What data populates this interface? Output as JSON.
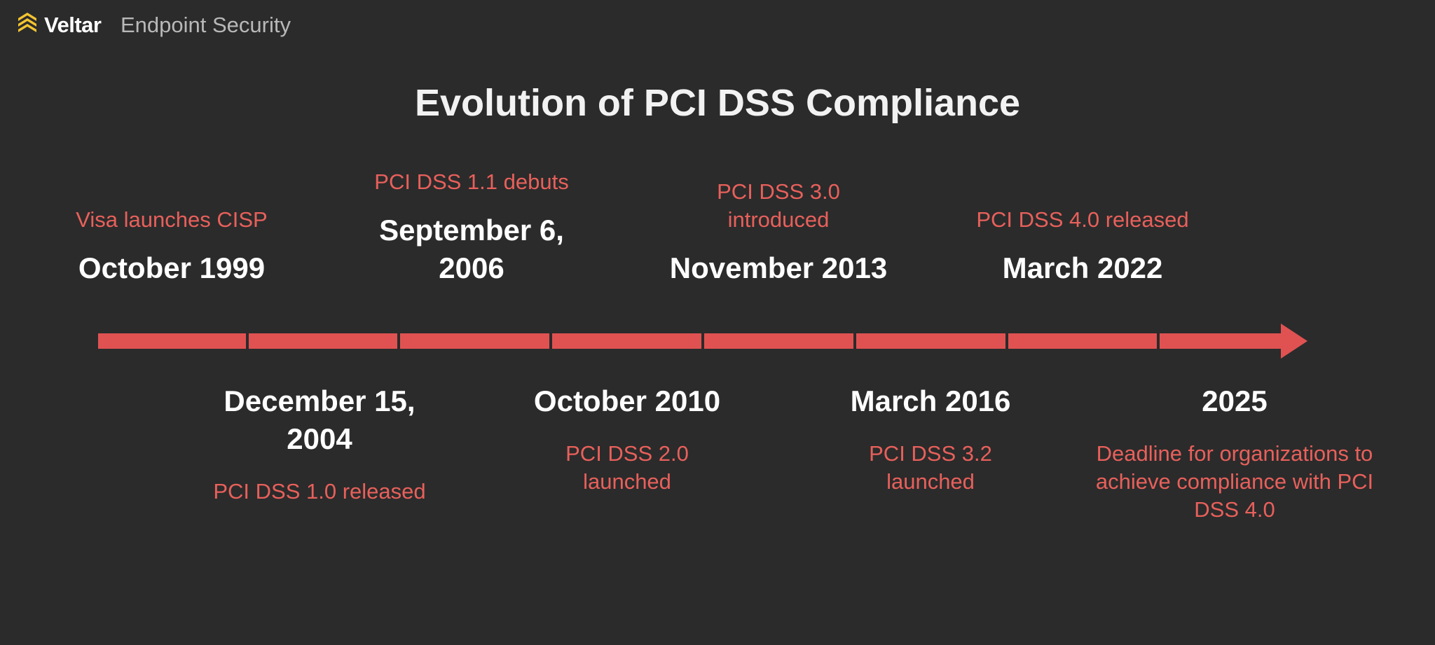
{
  "header": {
    "brand": "Veltar",
    "product": "Endpoint Security"
  },
  "title": "Evolution of PCI DSS Compliance",
  "events": [
    {
      "date": "October 1999",
      "description": "Visa launches CISP"
    },
    {
      "date": "December 15, 2004",
      "description": "PCI DSS 1.0 released"
    },
    {
      "date": "September 6, 2006",
      "description": "PCI DSS 1.1 debuts"
    },
    {
      "date": "October 2010",
      "description": "PCI DSS 2.0 launched"
    },
    {
      "date": "November 2013",
      "description": "PCI DSS 3.0 introduced"
    },
    {
      "date": "March 2016",
      "description": "PCI DSS 3.2 launched"
    },
    {
      "date": "March 2022",
      "description": "PCI DSS 4.0 released"
    },
    {
      "date": "2025",
      "description": "Deadline for organizations to achieve compliance with PCI DSS 4.0"
    }
  ]
}
